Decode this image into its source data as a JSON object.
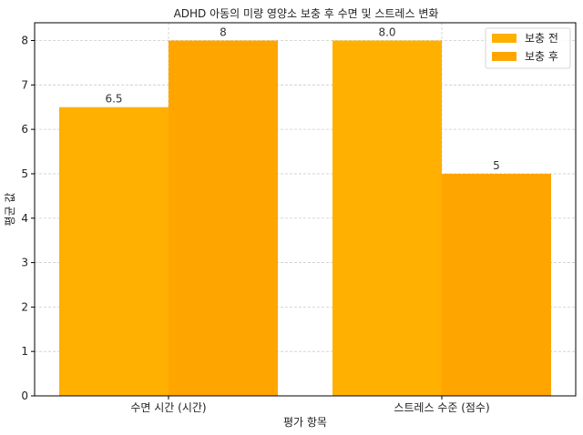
{
  "chart_data": {
    "type": "bar",
    "title": "ADHD 아동의 미량 영양소 보충 후 수면 및 스트레스 변화",
    "xlabel": "평가 항목",
    "ylabel": "평균 값",
    "categories": [
      "수면 시간 (시간)",
      "스트레스 수준 (점수)"
    ],
    "series": [
      {
        "name": "보충 전",
        "values": [
          6.5,
          8.0
        ],
        "labels": [
          "6.5",
          "8.0"
        ],
        "color": "#ffb000"
      },
      {
        "name": "보충 후",
        "values": [
          8,
          5
        ],
        "labels": [
          "8",
          "5"
        ],
        "color": "#ffa500"
      }
    ],
    "ylim": [
      0,
      8.4
    ],
    "yticks": [
      "0",
      "1",
      "2",
      "3",
      "4",
      "5",
      "6",
      "7",
      "8"
    ],
    "grid": true,
    "legend": "top-right"
  }
}
